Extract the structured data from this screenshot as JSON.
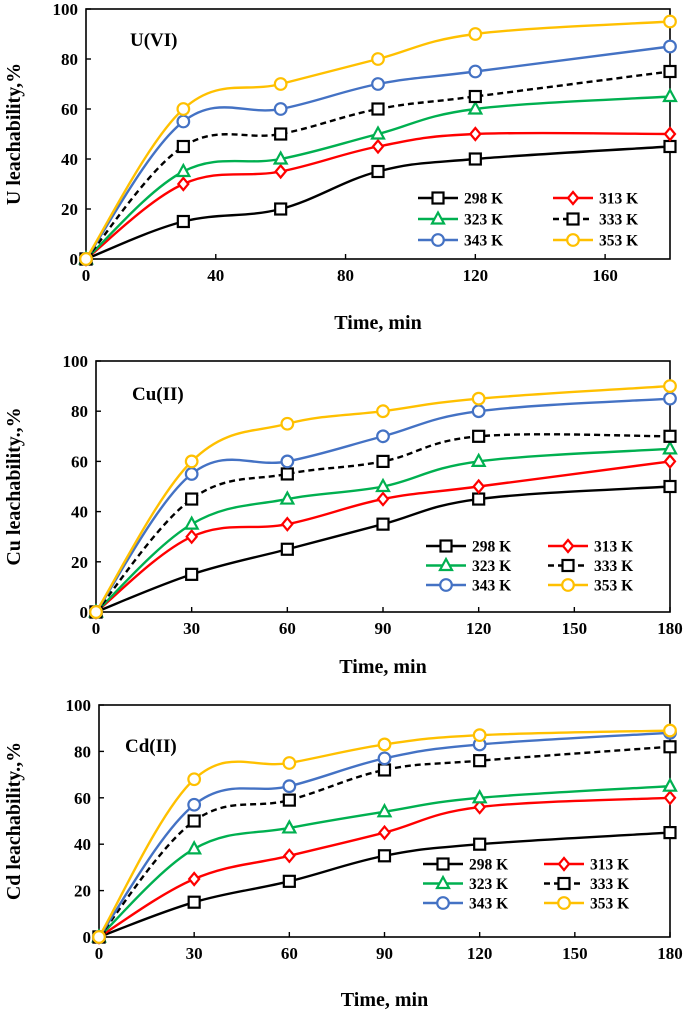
{
  "chart_data": [
    {
      "type": "line",
      "title": "U(VI)",
      "xlabel": "Time, min",
      "ylabel": "U leachability,%",
      "xlim": [
        0,
        180
      ],
      "ylim": [
        0,
        100
      ],
      "xticks": [
        0,
        40,
        80,
        120,
        160
      ],
      "yticks": [
        0,
        20,
        40,
        60,
        80,
        100
      ],
      "x": [
        0,
        30,
        60,
        90,
        120,
        180
      ],
      "grid": false,
      "legend_position": "bottom-right",
      "series": [
        {
          "name": "298 K",
          "values": [
            0,
            15,
            20,
            35,
            40,
            45
          ],
          "color": "#000000",
          "marker": "square",
          "dashed": false
        },
        {
          "name": "313 K",
          "values": [
            0,
            30,
            35,
            45,
            50,
            50
          ],
          "color": "#ff0000",
          "marker": "diamond",
          "dashed": false
        },
        {
          "name": "323 K",
          "values": [
            0,
            35,
            40,
            50,
            60,
            65
          ],
          "color": "#00b050",
          "marker": "triangle",
          "dashed": false
        },
        {
          "name": "333 K",
          "values": [
            0,
            45,
            50,
            60,
            65,
            75
          ],
          "color": "#000000",
          "marker": "square",
          "dashed": true
        },
        {
          "name": "343 K",
          "values": [
            0,
            55,
            60,
            70,
            75,
            85
          ],
          "color": "#4472c4",
          "marker": "circle",
          "dashed": false
        },
        {
          "name": "353 K",
          "values": [
            0,
            60,
            70,
            80,
            90,
            95
          ],
          "color": "#ffc000",
          "marker": "circle",
          "dashed": false
        }
      ]
    },
    {
      "type": "line",
      "title": "Cu(II)",
      "xlabel": "Time, min",
      "ylabel": "Cu leachability.,%",
      "xlim": [
        0,
        180
      ],
      "ylim": [
        0,
        100
      ],
      "xticks": [
        0,
        30,
        60,
        90,
        120,
        150,
        180
      ],
      "yticks": [
        0,
        20,
        40,
        60,
        80,
        100
      ],
      "x": [
        0,
        30,
        60,
        90,
        120,
        180
      ],
      "grid": false,
      "legend_position": "bottom-right",
      "series": [
        {
          "name": "298 K",
          "values": [
            0,
            15,
            25,
            35,
            45,
            50
          ],
          "color": "#000000",
          "marker": "square",
          "dashed": false
        },
        {
          "name": "313 K",
          "values": [
            0,
            30,
            35,
            45,
            50,
            60
          ],
          "color": "#ff0000",
          "marker": "diamond",
          "dashed": false
        },
        {
          "name": "323 K",
          "values": [
            0,
            35,
            45,
            50,
            60,
            65
          ],
          "color": "#00b050",
          "marker": "triangle",
          "dashed": false
        },
        {
          "name": "333 K",
          "values": [
            0,
            45,
            55,
            60,
            70,
            70
          ],
          "color": "#000000",
          "marker": "square",
          "dashed": true
        },
        {
          "name": "343 K",
          "values": [
            0,
            55,
            60,
            70,
            80,
            85
          ],
          "color": "#4472c4",
          "marker": "circle",
          "dashed": false
        },
        {
          "name": "353 K",
          "values": [
            0,
            60,
            75,
            80,
            85,
            90
          ],
          "color": "#ffc000",
          "marker": "circle",
          "dashed": false
        }
      ]
    },
    {
      "type": "line",
      "title": "Cd(II)",
      "xlabel": "Time, min",
      "ylabel": "Cd leachability.,%",
      "xlim": [
        0,
        180
      ],
      "ylim": [
        0,
        100
      ],
      "xticks": [
        0,
        30,
        60,
        90,
        120,
        150,
        180
      ],
      "yticks": [
        0,
        20,
        40,
        60,
        80,
        100
      ],
      "x": [
        0,
        30,
        60,
        90,
        120,
        180
      ],
      "grid": false,
      "legend_position": "bottom-right",
      "series": [
        {
          "name": "298 K",
          "values": [
            0,
            15,
            24,
            35,
            40,
            45
          ],
          "color": "#000000",
          "marker": "square",
          "dashed": false
        },
        {
          "name": "313 K",
          "values": [
            0,
            25,
            35,
            45,
            56,
            60
          ],
          "color": "#ff0000",
          "marker": "diamond",
          "dashed": false
        },
        {
          "name": "323 K",
          "values": [
            0,
            38,
            47,
            54,
            60,
            65
          ],
          "color": "#00b050",
          "marker": "triangle",
          "dashed": false
        },
        {
          "name": "333 K",
          "values": [
            0,
            50,
            59,
            72,
            76,
            82
          ],
          "color": "#000000",
          "marker": "square",
          "dashed": true
        },
        {
          "name": "343 K",
          "values": [
            0,
            57,
            65,
            77,
            83,
            88
          ],
          "color": "#4472c4",
          "marker": "circle",
          "dashed": false
        },
        {
          "name": "353 K",
          "values": [
            0,
            68,
            75,
            83,
            87,
            89
          ],
          "color": "#ffc000",
          "marker": "circle",
          "dashed": false
        }
      ]
    }
  ]
}
